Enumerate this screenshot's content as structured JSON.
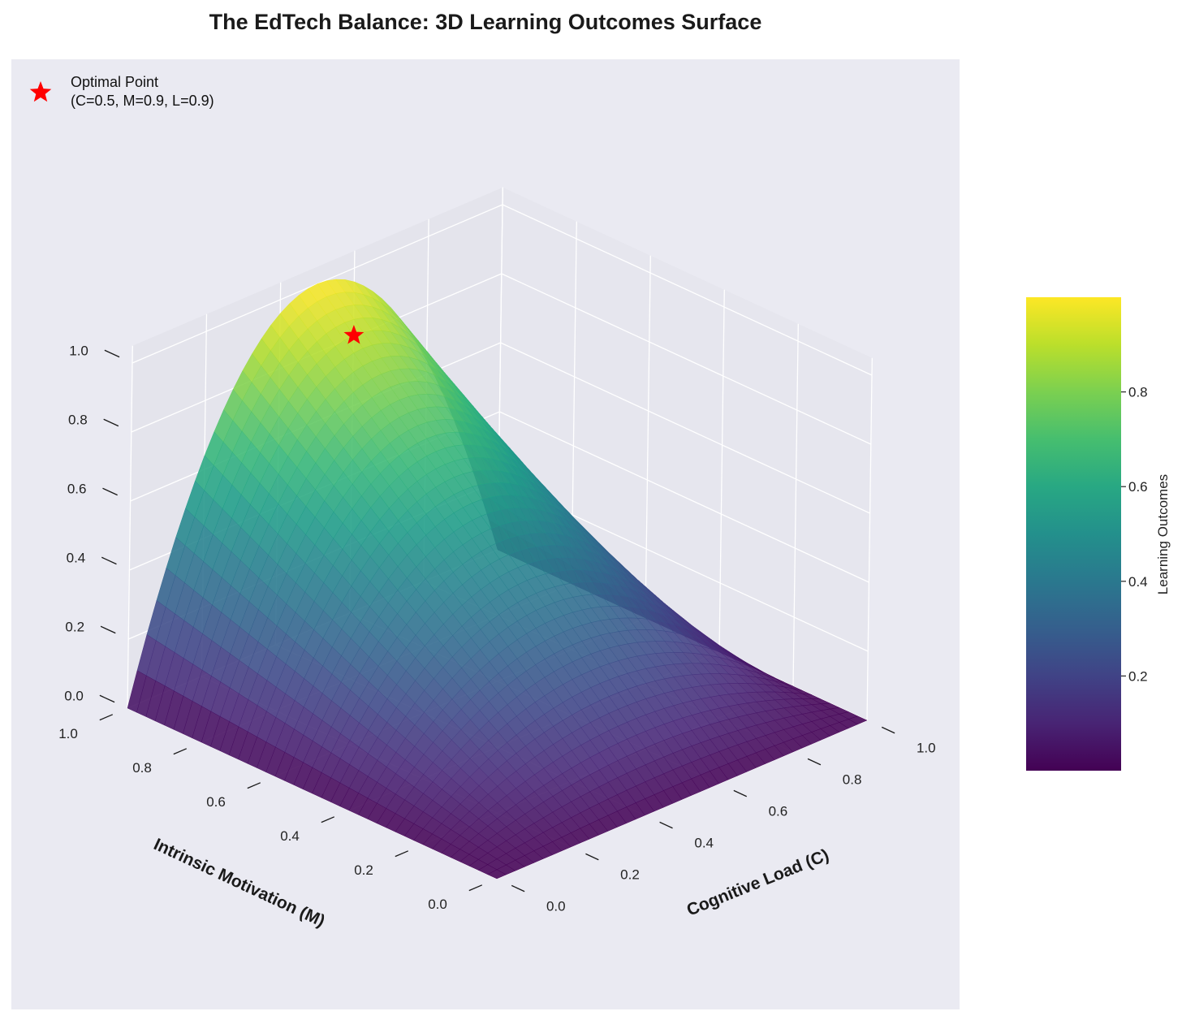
{
  "chart_data": {
    "type": "surface3d",
    "title": "The EdTech Balance: 3D Learning Outcomes Surface",
    "xlabel": "Cognitive Load (C)",
    "ylabel": "Intrinsic Motivation (M)",
    "zlabel": "",
    "xlim": [
      0,
      1
    ],
    "ylim": [
      0,
      1
    ],
    "zlim": [
      0,
      1.05
    ],
    "x_ticks": [
      "0.0",
      "0.2",
      "0.4",
      "0.6",
      "0.8",
      "1.0"
    ],
    "y_ticks": [
      "0.0",
      "0.2",
      "0.4",
      "0.6",
      "0.8",
      "1.0"
    ],
    "z_ticks": [
      "0.0",
      "0.2",
      "0.4",
      "0.6",
      "0.8",
      "1.0"
    ],
    "surface": {
      "formula": "L = 4 * C * (1 - C) * M",
      "colormap": "viridis"
    },
    "optimal_point": {
      "C": 0.5,
      "M": 0.9,
      "L": 0.9,
      "marker": "star",
      "color": "#ff0000"
    },
    "legend": {
      "position": "top-left",
      "entries": [
        {
          "line1": "Optimal Point",
          "line2": "(C=0.5, M=0.9, L=0.9)"
        }
      ]
    },
    "colorbar": {
      "label": "Learning Outcomes",
      "range": [
        0,
        1
      ],
      "ticks": [
        "0.2",
        "0.4",
        "0.6",
        "0.8"
      ],
      "tick_values": [
        0.2,
        0.4,
        0.6,
        0.8
      ]
    },
    "grid": true,
    "pane_color": "#eaeaf2"
  }
}
